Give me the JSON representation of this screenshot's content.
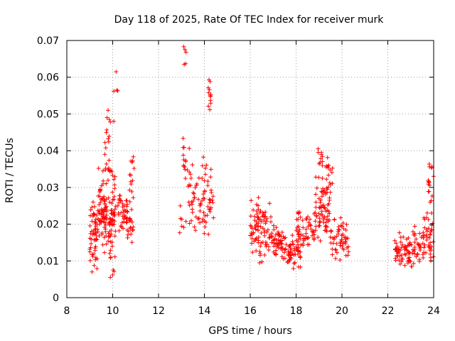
{
  "chart_data": {
    "type": "scatter",
    "title": "Day 118 of 2025, Rate Of TEC Index for receiver murk",
    "xlabel": "GPS time / hours",
    "ylabel": "ROTI / TECUs",
    "xlim": [
      8,
      24
    ],
    "ylim": [
      0,
      0.07
    ],
    "x_ticks": [
      "8",
      "10",
      "12",
      "14",
      "16",
      "18",
      "20",
      "22",
      "24"
    ],
    "y_ticks": [
      "0",
      "0.01",
      "0.02",
      "0.03",
      "0.04",
      "0.05",
      "0.06",
      "0.07"
    ],
    "grid": true,
    "marker": "+",
    "series": [
      {
        "name": "ROTI",
        "color": "#ff0000",
        "clusters": [
          {
            "x": [
              9.0,
              9.35
            ],
            "y": [
              0.006,
              0.027
            ],
            "n": 55
          },
          {
            "x": [
              9.35,
              9.75
            ],
            "y": [
              0.01,
              0.036
            ],
            "n": 75
          },
          {
            "x": [
              9.65,
              9.85
            ],
            "y": [
              0.03,
              0.051
            ],
            "n": 16
          },
          {
            "x": [
              9.8,
              10.15
            ],
            "y": [
              0.005,
              0.037
            ],
            "n": 65
          },
          {
            "x": [
              10.2,
              10.9
            ],
            "y": [
              0.013,
              0.031
            ],
            "n": 60
          },
          {
            "x": [
              10.7,
              10.95
            ],
            "y": [
              0.027,
              0.04
            ],
            "n": 12
          },
          {
            "x": [
              12.9,
              13.2
            ],
            "y": [
              0.014,
              0.025
            ],
            "n": 6
          },
          {
            "x": [
              13.05,
              13.35
            ],
            "y": [
              0.029,
              0.047
            ],
            "n": 16
          },
          {
            "x": [
              13.3,
              14.4
            ],
            "y": [
              0.014,
              0.04
            ],
            "n": 75
          },
          {
            "x": [
              14.15,
              14.35
            ],
            "y": [
              0.05,
              0.059
            ],
            "n": 8
          },
          {
            "x": [
              16.0,
              16.4
            ],
            "y": [
              0.011,
              0.029
            ],
            "n": 45
          },
          {
            "x": [
              16.4,
              16.9
            ],
            "y": [
              0.009,
              0.028
            ],
            "n": 45
          },
          {
            "x": [
              16.9,
              17.5
            ],
            "y": [
              0.01,
              0.02
            ],
            "n": 50
          },
          {
            "x": [
              17.5,
              18.2
            ],
            "y": [
              0.007,
              0.018
            ],
            "n": 55
          },
          {
            "x": [
              18.0,
              18.8
            ],
            "y": [
              0.011,
              0.025
            ],
            "n": 55
          },
          {
            "x": [
              18.8,
              19.5
            ],
            "y": [
              0.015,
              0.034
            ],
            "n": 75
          },
          {
            "x": [
              18.95,
              19.15
            ],
            "y": [
              0.035,
              0.041
            ],
            "n": 10
          },
          {
            "x": [
              19.3,
              19.6
            ],
            "y": [
              0.03,
              0.039
            ],
            "n": 12
          },
          {
            "x": [
              19.5,
              20.3
            ],
            "y": [
              0.009,
              0.024
            ],
            "n": 55
          },
          {
            "x": [
              22.3,
              22.9
            ],
            "y": [
              0.007,
              0.018
            ],
            "n": 45
          },
          {
            "x": [
              22.8,
              23.5
            ],
            "y": [
              0.007,
              0.02
            ],
            "n": 45
          },
          {
            "x": [
              23.5,
              24.0
            ],
            "y": [
              0.009,
              0.024
            ],
            "n": 45
          },
          {
            "x": [
              23.75,
              24.0
            ],
            "y": [
              0.025,
              0.04
            ],
            "n": 16
          }
        ],
        "points": [
          [
            13.1,
            0.0683
          ],
          [
            13.15,
            0.0675
          ],
          [
            13.2,
            0.0668
          ],
          [
            13.12,
            0.0635
          ],
          [
            13.18,
            0.0637
          ],
          [
            10.15,
            0.0615
          ],
          [
            10.22,
            0.0563
          ],
          [
            10.05,
            0.0562
          ],
          [
            10.18,
            0.0565
          ],
          [
            14.2,
            0.0593
          ],
          [
            14.25,
            0.0588
          ],
          [
            14.22,
            0.0566
          ],
          [
            14.28,
            0.0553
          ],
          [
            9.8,
            0.051
          ],
          [
            9.85,
            0.0485
          ],
          [
            9.9,
            0.0478
          ],
          [
            9.75,
            0.049
          ],
          [
            10.05,
            0.048
          ],
          [
            12.95,
            0.025
          ],
          [
            9.1,
            0.007
          ],
          [
            9.9,
            0.0055
          ],
          [
            10.0,
            0.0062
          ]
        ]
      }
    ]
  }
}
